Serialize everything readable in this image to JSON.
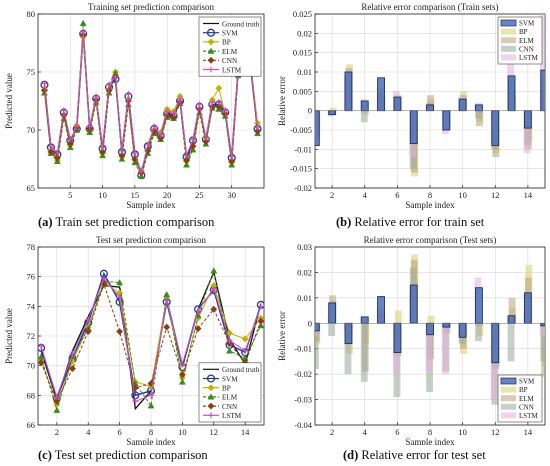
{
  "figure": {
    "captions": [
      {
        "letter": "(a)",
        "text": " Train set prediction comparison"
      },
      {
        "letter": "(b)",
        "text": " Relative error for train set"
      },
      {
        "letter": "(c)",
        "text": " Test set prediction comparison"
      },
      {
        "letter": "(d)",
        "text": " Relative error for test set"
      }
    ]
  },
  "chart_data": [
    {
      "id": "a",
      "type": "line",
      "title": "Training set prediction comparison",
      "xlabel": "Sample index",
      "ylabel": "Predicted value",
      "xlim": [
        0,
        35
      ],
      "ylim": [
        65,
        80
      ],
      "xticks": [
        5,
        10,
        15,
        20,
        25,
        30
      ],
      "yticks": [
        65,
        70,
        75,
        80
      ],
      "grid": true,
      "legend_position": "top-right",
      "x": [
        1,
        2,
        3,
        4,
        5,
        6,
        7,
        8,
        9,
        10,
        11,
        12,
        13,
        14,
        15,
        16,
        17,
        18,
        19,
        20,
        21,
        22,
        23,
        24,
        25,
        26,
        27,
        28,
        29,
        30,
        31,
        32,
        33,
        34
      ],
      "series": [
        {
          "name": "Ground truth",
          "color": "#111111",
          "style": "solid",
          "marker": "none",
          "values": [
            73.8,
            68.4,
            67.8,
            71.6,
            69.0,
            70.2,
            78.4,
            70.2,
            72.8,
            68.3,
            73.8,
            74.5,
            68.0,
            73.0,
            67.8,
            66.2,
            68.5,
            70.2,
            69.4,
            71.5,
            71.3,
            72.6,
            67.6,
            69.0,
            72.1,
            69.1,
            72.2,
            72.2,
            71.6,
            67.5,
            75.2,
            76.0,
            75.2,
            70.0
          ]
        },
        {
          "name": "SVM",
          "color": "#1f3a93",
          "style": "solid",
          "marker": "circle",
          "values": [
            73.9,
            68.5,
            67.9,
            71.5,
            69.1,
            70.1,
            78.3,
            70.1,
            72.7,
            68.4,
            73.7,
            74.4,
            68.1,
            72.9,
            67.9,
            66.1,
            68.6,
            70.1,
            69.5,
            71.4,
            71.2,
            72.5,
            67.7,
            69.1,
            72.0,
            69.2,
            72.2,
            72.2,
            71.5,
            67.6,
            75.3,
            76.1,
            75.1,
            70.1
          ]
        },
        {
          "name": "BP",
          "color": "#c5b000",
          "style": "solid",
          "marker": "diamond",
          "values": [
            73.5,
            68.2,
            67.4,
            71.2,
            68.7,
            70.4,
            78.0,
            70.0,
            72.5,
            68.0,
            73.5,
            75.0,
            67.7,
            72.6,
            67.4,
            66.5,
            68.3,
            70.0,
            69.8,
            71.8,
            71.6,
            72.9,
            67.3,
            68.6,
            71.8,
            69.4,
            72.6,
            73.6,
            71.3,
            67.2,
            75.0,
            75.8,
            75.5,
            70.6
          ]
        },
        {
          "name": "ELM",
          "color": "#3a8c1a",
          "style": "dash",
          "marker": "triangle",
          "values": [
            73.2,
            68.0,
            67.3,
            71.0,
            68.5,
            70.0,
            79.2,
            69.8,
            72.4,
            67.8,
            73.2,
            74.9,
            67.5,
            72.2,
            67.2,
            66.0,
            68.0,
            69.7,
            69.2,
            71.1,
            71.0,
            72.3,
            67.0,
            68.3,
            71.5,
            68.8,
            71.9,
            71.8,
            71.2,
            67.0,
            74.7,
            75.4,
            74.9,
            69.7
          ]
        },
        {
          "name": "CNN",
          "color": "#8b3e12",
          "style": "dash",
          "marker": "diamond",
          "values": [
            73.4,
            68.1,
            67.6,
            71.3,
            68.8,
            70.2,
            78.2,
            70.1,
            72.6,
            68.1,
            73.4,
            74.6,
            67.8,
            72.5,
            67.5,
            66.3,
            68.2,
            69.9,
            69.3,
            71.3,
            71.1,
            72.4,
            67.4,
            68.6,
            71.8,
            69.0,
            72.0,
            72.0,
            71.4,
            67.3,
            75.0,
            75.9,
            75.0,
            69.9
          ]
        },
        {
          "name": "LSTM",
          "color": "#d24cc8",
          "style": "solid",
          "marker": "plus",
          "values": [
            74.0,
            68.6,
            68.0,
            71.7,
            69.2,
            70.3,
            78.5,
            70.3,
            72.9,
            68.5,
            73.9,
            74.6,
            68.2,
            73.1,
            68.0,
            66.4,
            68.7,
            70.3,
            69.6,
            71.6,
            71.4,
            72.7,
            67.8,
            69.2,
            72.2,
            69.3,
            72.4,
            72.4,
            71.7,
            67.7,
            75.4,
            76.2,
            75.3,
            70.2
          ]
        }
      ]
    },
    {
      "id": "b",
      "type": "bar",
      "title": "Relative error comparison (Train sets)",
      "xlabel": "Sample index",
      "ylabel": "Relative error",
      "xlim": [
        0.95,
        15.05
      ],
      "ylim": [
        -0.02,
        0.025
      ],
      "xticks": [
        2,
        4,
        6,
        8,
        10,
        12,
        14
      ],
      "yticks": [
        -0.02,
        -0.015,
        -0.01,
        -0.005,
        0,
        0.005,
        0.01,
        0.015,
        0.02,
        0.025
      ],
      "ytick_labels": [
        "-0.02",
        "-0.015",
        "-0.01",
        "-0.005",
        "0",
        "0.005",
        "0.01",
        "0.015",
        "0.02",
        "0.025"
      ],
      "grid": true,
      "legend_position": "top-right",
      "categories": [
        1,
        2,
        3,
        4,
        5,
        6,
        7,
        8,
        9,
        10,
        11,
        12,
        13,
        14,
        15
      ],
      "series": [
        {
          "name": "SVM",
          "color": "#4a6fb5",
          "opacity": 0.85,
          "values": [
            -0.009,
            -0.001,
            0.01,
            0.0025,
            0.0085,
            0.0035,
            -0.0085,
            0.0015,
            -0.005,
            0.003,
            0.0015,
            -0.009,
            0.009,
            -0.0045,
            0.0105
          ]
        },
        {
          "name": "BP",
          "color": "#d8cf6a",
          "opacity": 0.55,
          "values": [
            -0.006,
            0.0008,
            0.012,
            -0.001,
            0.004,
            0.003,
            -0.017,
            0.003,
            -0.004,
            0.005,
            -0.003,
            -0.011,
            0.004,
            -0.008,
            0.008
          ]
        },
        {
          "name": "ELM",
          "color": "#b9a27a",
          "opacity": 0.55,
          "values": [
            -0.007,
            -0.0005,
            0.011,
            0.002,
            0.005,
            0.004,
            -0.016,
            0.004,
            -0.005,
            0.004,
            -0.004,
            -0.012,
            0.008,
            -0.01,
            0.009
          ]
        },
        {
          "name": "CNN",
          "color": "#9aa89a",
          "opacity": 0.55,
          "values": [
            -0.005,
            -0.001,
            0.008,
            -0.003,
            0.003,
            0.0025,
            -0.015,
            0.002,
            -0.003,
            0.002,
            -0.002,
            -0.01,
            0.006,
            -0.009,
            0.007
          ]
        },
        {
          "name": "LSTM",
          "color": "#e2b0dc",
          "opacity": 0.55,
          "values": [
            -0.008,
            -0.0015,
            0.009,
            0.003,
            0.006,
            0.005,
            -0.012,
            0.001,
            -0.006,
            0.0035,
            0.002,
            -0.008,
            0.015,
            -0.011,
            0.025
          ]
        }
      ]
    },
    {
      "id": "c",
      "type": "line",
      "title": "Test set prediction comparison",
      "xlabel": "Sample index",
      "ylabel": "Predicted value",
      "xlim": [
        0.8,
        15.2
      ],
      "ylim": [
        66,
        78
      ],
      "xticks": [
        2,
        4,
        6,
        8,
        10,
        12,
        14
      ],
      "yticks": [
        66,
        68,
        70,
        72,
        74,
        76,
        78
      ],
      "grid": true,
      "legend_position": "bottom-right",
      "x": [
        1,
        2,
        3,
        4,
        5,
        6,
        7,
        8,
        9,
        10,
        11,
        12,
        13,
        14,
        15
      ],
      "series": [
        {
          "name": "Ground truth",
          "color": "#111111",
          "style": "solid",
          "marker": "none",
          "values": [
            71.0,
            67.7,
            71.0,
            73.3,
            75.4,
            75.3,
            67.1,
            68.3,
            74.5,
            70.0,
            73.8,
            76.3,
            71.8,
            70.1,
            74.2
          ]
        },
        {
          "name": "SVM",
          "color": "#1f3a93",
          "style": "solid",
          "marker": "circle",
          "values": [
            71.2,
            67.8,
            70.5,
            72.9,
            76.2,
            74.3,
            68.0,
            68.3,
            74.3,
            69.9,
            73.8,
            75.1,
            71.4,
            70.9,
            74.1
          ]
        },
        {
          "name": "BP",
          "color": "#c5b000",
          "style": "solid",
          "marker": "diamond",
          "values": [
            70.4,
            67.4,
            70.3,
            72.6,
            75.6,
            74.9,
            68.9,
            68.6,
            74.6,
            69.2,
            73.2,
            75.4,
            72.2,
            71.8,
            73.2
          ]
        },
        {
          "name": "ELM",
          "color": "#3a8c1a",
          "style": "dash",
          "marker": "triangle",
          "values": [
            70.6,
            67.0,
            70.6,
            72.5,
            75.7,
            75.6,
            68.8,
            67.3,
            74.8,
            68.9,
            73.4,
            76.4,
            71.0,
            70.5,
            72.7
          ]
        },
        {
          "name": "CNN",
          "color": "#8b3e12",
          "style": "dash",
          "marker": "diamond",
          "values": [
            70.2,
            67.6,
            69.8,
            72.3,
            75.5,
            72.3,
            68.5,
            68.8,
            72.6,
            69.4,
            72.5,
            73.8,
            71.5,
            70.2,
            73.0
          ]
        },
        {
          "name": "LSTM",
          "color": "#d24cc8",
          "style": "solid",
          "marker": "plus",
          "values": [
            71.3,
            67.9,
            70.8,
            73.1,
            75.9,
            74.6,
            67.6,
            68.0,
            74.4,
            70.1,
            73.7,
            75.2,
            71.7,
            71.0,
            74.0
          ]
        }
      ]
    },
    {
      "id": "d",
      "type": "bar",
      "title": "Relative error comparison (Test sets)",
      "xlabel": "Sample index",
      "ylabel": "Relative error",
      "xlim": [
        0.95,
        15.05
      ],
      "ylim": [
        -0.04,
        0.03
      ],
      "xticks": [
        2,
        4,
        6,
        8,
        10,
        12,
        14
      ],
      "yticks": [
        -0.04,
        -0.03,
        -0.02,
        -0.01,
        0,
        0.01,
        0.02,
        0.03
      ],
      "ytick_labels": [
        "-0.04",
        "-0.03",
        "-0.02",
        "-0.01",
        "0",
        "0.01",
        "0.02",
        "0.03"
      ],
      "grid": true,
      "legend_position": "bottom-right",
      "categories": [
        1,
        2,
        3,
        4,
        5,
        6,
        7,
        8,
        9,
        10,
        11,
        12,
        13,
        14,
        15
      ],
      "series": [
        {
          "name": "SVM",
          "color": "#4a6fb5",
          "opacity": 0.85,
          "values": [
            -0.003,
            0.008,
            -0.008,
            0.0025,
            0.0105,
            -0.0115,
            0.015,
            -0.0045,
            -0.0015,
            -0.0055,
            0.014,
            -0.0155,
            0.003,
            0.012,
            -0.001
          ]
        },
        {
          "name": "BP",
          "color": "#d8cf6a",
          "opacity": 0.55,
          "values": [
            -0.008,
            0.009,
            -0.012,
            -0.008,
            0.002,
            0.005,
            0.027,
            0.003,
            -0.001,
            -0.012,
            -0.005,
            -0.017,
            0.006,
            0.023,
            -0.017
          ]
        },
        {
          "name": "ELM",
          "color": "#b9a27a",
          "opacity": 0.55,
          "values": [
            -0.007,
            0.011,
            -0.006,
            -0.019,
            0.004,
            -0.013,
            0.025,
            -0.014,
            -0.004,
            -0.01,
            -0.001,
            -0.018,
            0.01,
            0.018,
            -0.021
          ]
        },
        {
          "name": "CNN",
          "color": "#9aa89a",
          "opacity": 0.55,
          "values": [
            -0.018,
            -0.005,
            -0.02,
            -0.023,
            0.001,
            -0.029,
            0.022,
            -0.027,
            -0.019,
            -0.008,
            -0.007,
            -0.032,
            -0.015,
            0.003,
            -0.015
          ]
        },
        {
          "name": "LSTM",
          "color": "#e2b0dc",
          "opacity": 0.55,
          "values": [
            -0.005,
            0.003,
            -0.003,
            0.002,
            0.006,
            -0.02,
            0.012,
            -0.019,
            -0.02,
            -0.004,
            0.018,
            -0.03,
            0.002,
            0.005,
            -0.005
          ]
        }
      ]
    }
  ]
}
